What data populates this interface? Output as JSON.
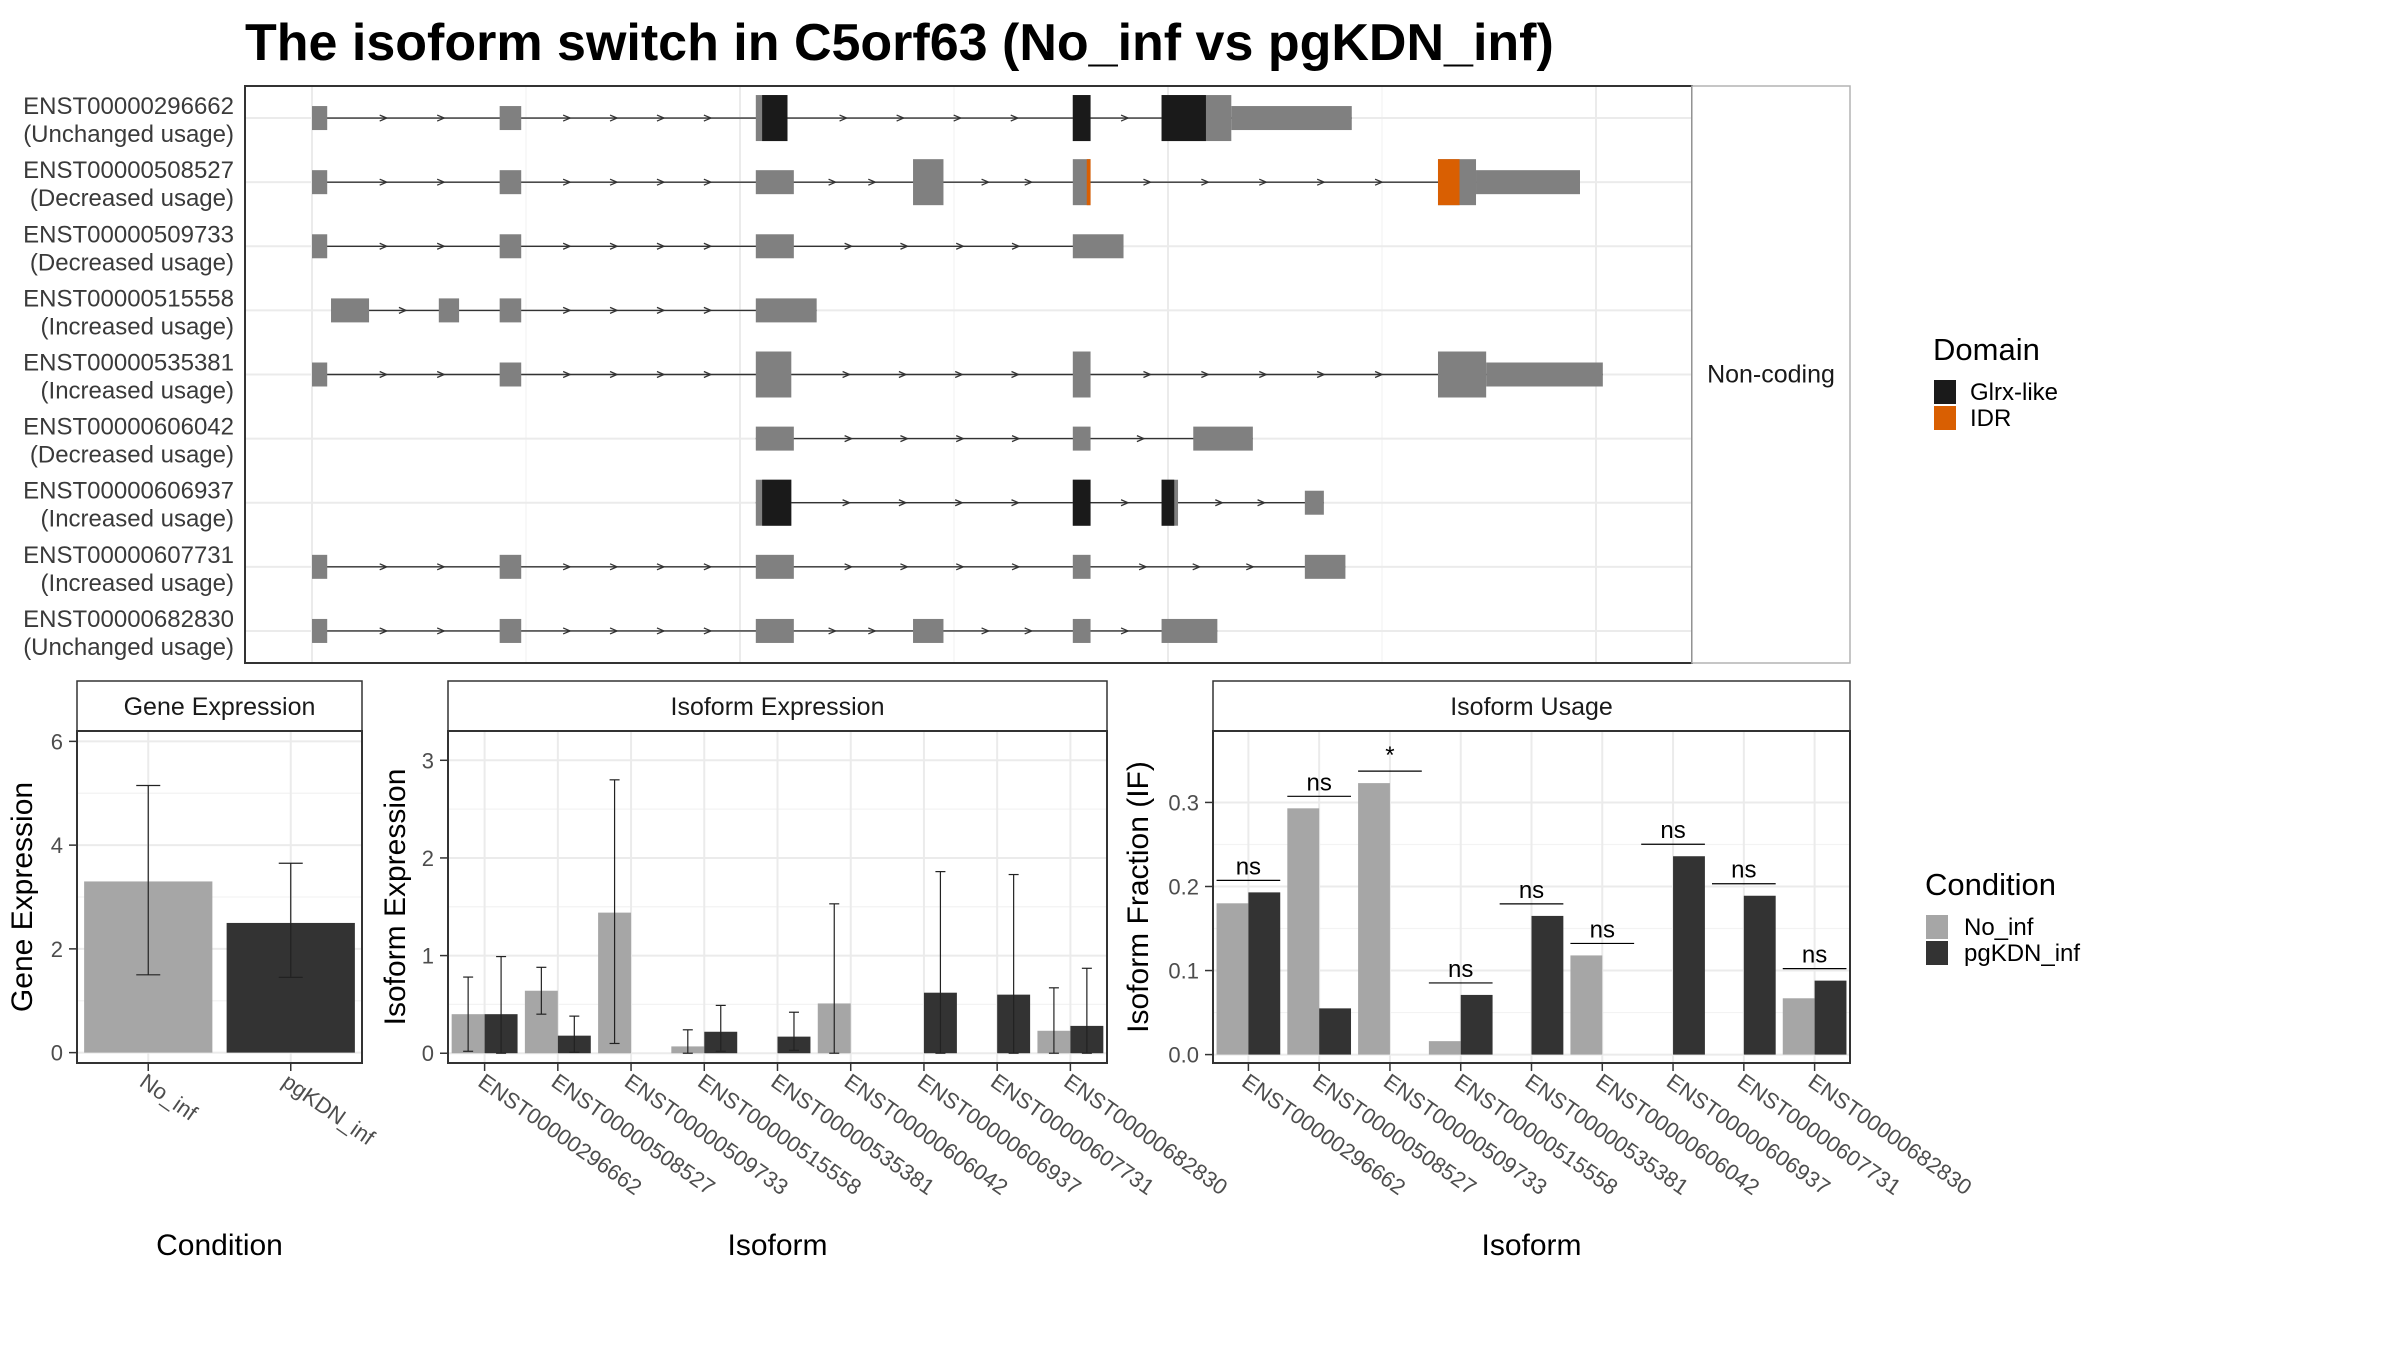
{
  "title": "The isoform switch in C5orf63 (No_inf vs pgKDN_inf)",
  "colors": {
    "no_inf": "#a6a6a6",
    "pgkdn_inf": "#333333",
    "exon": "#808080",
    "glrx_like": "#1a1a1a",
    "idr": "#d95f02"
  },
  "chart_data": [
    {
      "type": "gene-structure",
      "strip_label": "Non-coding",
      "xlim": [
        0,
        1000
      ],
      "isoforms": [
        {
          "id": "ENST00000296662",
          "usage": "(Unchanged usage)",
          "exons": [
            [
              0,
              12,
              "nc"
            ],
            [
              148,
              165,
              "nc"
            ],
            [
              350,
              375,
              "cds"
            ],
            [
              600,
              614,
              "cds"
            ],
            [
              670,
              725,
              "cds"
            ],
            [
              725,
              820,
              "nc"
            ]
          ],
          "domains": [
            [
              355,
              375,
              "Glrx-like"
            ],
            [
              600,
              614,
              "Glrx-like"
            ],
            [
              670,
              705,
              "Glrx-like"
            ]
          ]
        },
        {
          "id": "ENST00000508527",
          "usage": "(Decreased usage)",
          "exons": [
            [
              0,
              12,
              "nc"
            ],
            [
              148,
              165,
              "nc"
            ],
            [
              350,
              380,
              "nc"
            ],
            [
              474,
              498,
              "cds"
            ],
            [
              600,
              614,
              "cds"
            ],
            [
              888,
              918,
              "cds"
            ],
            [
              918,
              1000,
              "nc"
            ]
          ],
          "domains": [
            [
              611,
              614,
              "IDR"
            ],
            [
              888,
              905,
              "IDR"
            ]
          ]
        },
        {
          "id": "ENST00000509733",
          "usage": "(Decreased usage)",
          "exons": [
            [
              0,
              12,
              "nc"
            ],
            [
              148,
              165,
              "nc"
            ],
            [
              350,
              380,
              "nc"
            ],
            [
              600,
              640,
              "nc"
            ]
          ],
          "domains": []
        },
        {
          "id": "ENST00000515558",
          "usage": "(Increased usage)",
          "exons": [
            [
              15,
              45,
              "nc"
            ],
            [
              100,
              116,
              "nc"
            ],
            [
              148,
              165,
              "nc"
            ],
            [
              350,
              398,
              "nc"
            ]
          ],
          "domains": []
        },
        {
          "id": "ENST00000535381",
          "usage": "(Increased usage)",
          "exons": [
            [
              0,
              12,
              "nc"
            ],
            [
              148,
              165,
              "nc"
            ],
            [
              350,
              378,
              "cds"
            ],
            [
              600,
              614,
              "cds"
            ],
            [
              888,
              926,
              "cds"
            ],
            [
              926,
              1018,
              "nc"
            ]
          ],
          "domains": []
        },
        {
          "id": "ENST00000606042",
          "usage": "(Decreased usage)",
          "exons": [
            [
              350,
              380,
              "nc"
            ],
            [
              600,
              614,
              "nc"
            ],
            [
              695,
              742,
              "nc"
            ]
          ],
          "domains": []
        },
        {
          "id": "ENST00000606937",
          "usage": "(Increased usage)",
          "exons": [
            [
              350,
              378,
              "cds"
            ],
            [
              600,
              614,
              "cds"
            ],
            [
              670,
              683,
              "cds"
            ],
            [
              783,
              798,
              "nc"
            ]
          ],
          "domains": [
            [
              355,
              378,
              "Glrx-like"
            ],
            [
              600,
              614,
              "Glrx-like"
            ],
            [
              670,
              680,
              "Glrx-like"
            ]
          ]
        },
        {
          "id": "ENST00000607731",
          "usage": "(Increased usage)",
          "exons": [
            [
              0,
              12,
              "nc"
            ],
            [
              148,
              165,
              "nc"
            ],
            [
              350,
              380,
              "nc"
            ],
            [
              600,
              614,
              "nc"
            ],
            [
              783,
              815,
              "nc"
            ]
          ],
          "domains": []
        },
        {
          "id": "ENST00000682830",
          "usage": "(Unchanged usage)",
          "exons": [
            [
              0,
              12,
              "nc"
            ],
            [
              148,
              165,
              "nc"
            ],
            [
              350,
              380,
              "nc"
            ],
            [
              474,
              498,
              "nc"
            ],
            [
              600,
              614,
              "nc"
            ],
            [
              670,
              714,
              "nc"
            ]
          ],
          "domains": []
        }
      ],
      "legend": {
        "title": "Domain",
        "entries": [
          "Glrx-like",
          "IDR"
        ]
      }
    },
    {
      "type": "bar",
      "strip_label": "Gene Expression",
      "ylabel": "Gene Expression",
      "xlabel": "Condition",
      "ylim": [
        -0.2,
        6.2
      ],
      "yticks": [
        0,
        2,
        4,
        6
      ],
      "categories": [
        "No_inf",
        "pgKDN_inf"
      ],
      "values": [
        3.3,
        2.5
      ],
      "errors": [
        [
          1.5,
          5.15
        ],
        [
          1.45,
          3.65
        ]
      ]
    },
    {
      "type": "bar",
      "strip_label": "Isoform Expression",
      "ylabel": "Isoform Expression",
      "xlabel": "Isoform",
      "ylim": [
        -0.1,
        3.3
      ],
      "yticks": [
        0,
        1,
        2,
        3
      ],
      "categories": [
        "ENST00000296662",
        "ENST00000508527",
        "ENST00000509733",
        "ENST00000515558",
        "ENST00000535381",
        "ENST00000606042",
        "ENST00000606937",
        "ENST00000607731",
        "ENST00000682830"
      ],
      "series": [
        {
          "name": "No_inf",
          "values": [
            0.4,
            0.64,
            1.44,
            0.07,
            0,
            0.51,
            0,
            0,
            0.23
          ],
          "errors": [
            [
              0.02,
              0.78
            ],
            [
              0.4,
              0.88
            ],
            [
              0.1,
              2.8
            ],
            [
              0,
              0.24
            ],
            [
              0,
              0
            ],
            [
              0,
              1.53
            ],
            [
              0,
              0
            ],
            [
              0,
              0
            ],
            [
              0,
              0.67
            ]
          ]
        },
        {
          "name": "pgKDN_inf",
          "values": [
            0.4,
            0.18,
            0,
            0.22,
            0.17,
            0,
            0.62,
            0.6,
            0.28
          ],
          "errors": [
            [
              0,
              0.99
            ],
            [
              0.01,
              0.38
            ],
            [
              0,
              0
            ],
            [
              0.02,
              0.49
            ],
            [
              0.03,
              0.42
            ],
            [
              0,
              0
            ],
            [
              0,
              1.86
            ],
            [
              0,
              1.83
            ],
            [
              0,
              0.87
            ]
          ]
        }
      ]
    },
    {
      "type": "bar",
      "strip_label": "Isoform Usage",
      "ylabel": "Isoform Fraction (IF)",
      "xlabel": "Isoform",
      "ylim": [
        -0.01,
        0.385
      ],
      "yticks": [
        0.0,
        0.1,
        0.2,
        0.3
      ],
      "ytick_labels": [
        "0.0",
        "0.1",
        "0.2",
        "0.3"
      ],
      "categories": [
        "ENST00000296662",
        "ENST00000508527",
        "ENST00000509733",
        "ENST00000515558",
        "ENST00000535381",
        "ENST00000606042",
        "ENST00000606937",
        "ENST00000607731",
        "ENST00000682830"
      ],
      "series": [
        {
          "name": "No_inf",
          "values": [
            0.18,
            0.293,
            0.323,
            0.016,
            0,
            0.118,
            0,
            0,
            0.067
          ]
        },
        {
          "name": "pgKDN_inf",
          "values": [
            0.193,
            0.055,
            0,
            0.071,
            0.165,
            0,
            0.236,
            0.189,
            0.088
          ]
        }
      ],
      "significance": [
        "ns",
        "ns",
        "*",
        "ns",
        "ns",
        "ns",
        "ns",
        "ns",
        "ns"
      ],
      "legend": {
        "title": "Condition",
        "entries": [
          "No_inf",
          "pgKDN_inf"
        ]
      }
    }
  ]
}
